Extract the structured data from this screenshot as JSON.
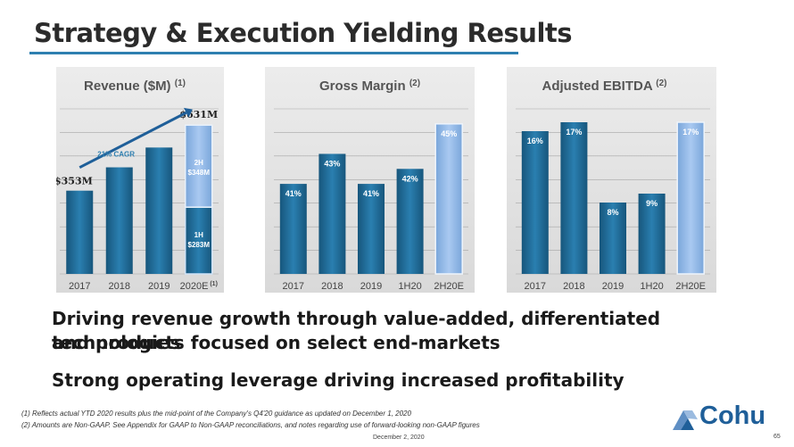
{
  "slide": {
    "title": "Strategy & Execution Yielding Results",
    "bullets": [
      "Driving revenue growth through value-added, differentiated technologies",
      "and products focused on select end-markets",
      "Strong operating leverage driving increased profitability"
    ],
    "footnotes": [
      "(1)  Reflects actual YTD 2020 results plus the mid-point of the Company's Q4'20 guidance as updated on December 1, 2020",
      "(2)  Amounts are Non-GAAP.  See Appendix for GAAP to Non-GAAP reconciliations, and notes regarding use of forward-looking non-GAAP figures"
    ],
    "date": "December 2, 2020",
    "page_number": "65",
    "logo_text": "Cohu",
    "colors": {
      "title_line": "#2e7fb0",
      "bar_dark": "#1f6a96",
      "bar_light": "#8ab4e6",
      "logo": "#1f5f99"
    }
  },
  "chart_data": [
    {
      "type": "bar",
      "title": "Revenue ($M)",
      "title_note": "(1)",
      "categories": [
        "2017",
        "2018",
        "2019",
        "2020E"
      ],
      "category_note": "(1)",
      "values": [
        353,
        452,
        536,
        631
      ],
      "stacked_last": [
        {
          "label": "1H",
          "value_label": "$283M",
          "value": 283
        },
        {
          "label": "2H",
          "value_label": "$348M",
          "value": 348
        }
      ],
      "annotations": {
        "first": "$353M",
        "last": "$631M",
        "cagr": "21% CAGR"
      },
      "ylim": [
        0,
        700
      ],
      "grid": true
    },
    {
      "type": "bar",
      "title": "Gross Margin",
      "title_note": "(2)",
      "categories": [
        "2017",
        "2018",
        "2019",
        "1H20",
        "2H20E"
      ],
      "values": [
        41,
        43,
        41,
        42,
        45
      ],
      "data_labels": [
        "41%",
        "43%",
        "41%",
        "42%",
        "45%"
      ],
      "ylim": [
        35,
        46
      ],
      "grid": true
    },
    {
      "type": "bar",
      "title": "Adjusted EBITDA",
      "title_note": "(2)",
      "categories": [
        "2017",
        "2018",
        "2019",
        "1H20",
        "2H20E"
      ],
      "values": [
        16,
        17,
        8,
        9,
        17
      ],
      "data_labels": [
        "16%",
        "17%",
        "8%",
        "9%",
        "17%"
      ],
      "ylim": [
        0,
        18.5
      ],
      "grid": true
    }
  ]
}
